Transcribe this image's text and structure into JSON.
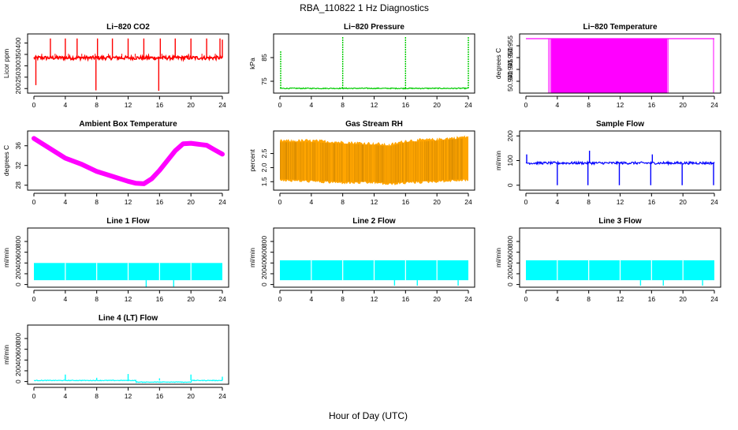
{
  "figure": {
    "title": "RBA_110822  1 Hz Diagnostics",
    "xlabel": "Hour of Day (UTC)"
  },
  "chart_data": [
    {
      "id": "co2",
      "type": "line",
      "title": "Li−820 CO2",
      "ylabel": "Licor ppm",
      "color": "#ff0000",
      "xlim": [
        0,
        24
      ],
      "ylim": [
        180,
        440
      ],
      "yticks": [
        "200",
        "250",
        "300",
        "350",
        "400"
      ],
      "ytick_values": [
        200,
        250,
        300,
        350,
        400
      ],
      "baseline": 335,
      "noise": 8,
      "spikes": [
        {
          "x": 0.25,
          "y": 215
        },
        {
          "x": 2.1,
          "y": 420
        },
        {
          "x": 4.0,
          "y": 420
        },
        {
          "x": 5.5,
          "y": 420
        },
        {
          "x": 7.9,
          "y": 192
        },
        {
          "x": 8.1,
          "y": 420
        },
        {
          "x": 10.0,
          "y": 420
        },
        {
          "x": 12.0,
          "y": 420
        },
        {
          "x": 14.0,
          "y": 420
        },
        {
          "x": 15.9,
          "y": 190
        },
        {
          "x": 16.1,
          "y": 420
        },
        {
          "x": 18.0,
          "y": 420
        },
        {
          "x": 20.0,
          "y": 420
        },
        {
          "x": 22.0,
          "y": 420
        },
        {
          "x": 23.7,
          "y": 420
        },
        {
          "x": 24.0,
          "y": 415
        }
      ]
    },
    {
      "id": "pressure",
      "type": "line",
      "title": "Li−820 Pressure",
      "ylabel": "kPa",
      "color": "#00cc00",
      "xlim": [
        0,
        24
      ],
      "ylim": [
        70,
        95
      ],
      "yticks": [
        "75",
        "85"
      ],
      "ytick_values": [
        75,
        85
      ],
      "baseline": 72,
      "noise": 0.2,
      "spikes": [
        {
          "x": 0.1,
          "y": 88
        },
        {
          "x": 8.0,
          "y": 94
        },
        {
          "x": 16.0,
          "y": 94
        },
        {
          "x": 24.0,
          "y": 94
        }
      ]
    },
    {
      "id": "li820_temp",
      "type": "area",
      "title": "Li−820 Temperature",
      "ylabel": "degrees C",
      "color": "#ff00ff",
      "xlim": [
        0,
        24
      ],
      "ylim": [
        50.935,
        50.96
      ],
      "yticks": [
        "50.940",
        "50.945",
        "50.950",
        "50.955"
      ],
      "ytick_values": [
        50.94,
        50.945,
        50.95,
        50.955
      ],
      "upper": 50.958,
      "lower": 50.935,
      "bands": [
        [
          3.2,
          18.0
        ]
      ],
      "verticals": [
        2.9,
        3.1,
        18.1,
        23.9
      ]
    },
    {
      "id": "ambient_temp",
      "type": "line",
      "title": "Ambient Box Temperature",
      "ylabel": "degrees C",
      "color": "#ff00ff",
      "xlim": [
        0,
        24
      ],
      "ylim": [
        27,
        39
      ],
      "yticks": [
        "28",
        "32",
        "36"
      ],
      "ytick_values": [
        28,
        32,
        36
      ],
      "x": [
        0,
        2,
        4,
        6,
        8,
        10,
        12,
        13,
        14,
        15,
        16,
        17,
        18,
        19,
        20,
        21,
        22,
        23,
        24
      ],
      "y": [
        37.5,
        35.5,
        33.5,
        32.3,
        30.8,
        29.8,
        28.8,
        28.4,
        28.3,
        29.3,
        31.0,
        33.0,
        35.0,
        36.4,
        36.5,
        36.3,
        36.1,
        35.2,
        34.3
      ]
    },
    {
      "id": "rh",
      "type": "line",
      "title": "Gas Stream RH",
      "ylabel": "percent",
      "color": "#ffa500",
      "xlim": [
        0,
        24
      ],
      "ylim": [
        1.2,
        3.3
      ],
      "yticks": [
        "1.5",
        "2.0",
        "2.5"
      ],
      "ytick_values": [
        1.5,
        2.0,
        2.5
      ],
      "x": [
        0,
        4,
        8,
        12,
        14,
        16,
        20,
        24
      ],
      "upper": [
        2.9,
        2.9,
        2.85,
        2.8,
        2.75,
        2.9,
        2.95,
        3.05
      ],
      "lower": [
        1.6,
        1.55,
        1.5,
        1.5,
        1.45,
        1.5,
        1.55,
        1.6
      ]
    },
    {
      "id": "sample_flow",
      "type": "line",
      "title": "Sample Flow",
      "ylabel": "ml/min",
      "color": "#0000ff",
      "xlim": [
        0,
        24
      ],
      "ylim": [
        -20,
        220
      ],
      "yticks": [
        "0",
        "100",
        "200"
      ],
      "ytick_values": [
        0,
        100,
        200
      ],
      "baseline": 90,
      "noise": 5,
      "spikes": [
        {
          "x": 0.1,
          "y": 125
        },
        {
          "x": 4.0,
          "y": 0
        },
        {
          "x": 7.9,
          "y": 0
        },
        {
          "x": 8.1,
          "y": 140
        },
        {
          "x": 11.9,
          "y": 0
        },
        {
          "x": 15.9,
          "y": 0
        },
        {
          "x": 16.1,
          "y": 125
        },
        {
          "x": 19.9,
          "y": 0
        },
        {
          "x": 23.9,
          "y": 0
        }
      ]
    },
    {
      "id": "line1",
      "type": "area",
      "title": "Line 1 Flow",
      "ylabel": "ml/min",
      "color": "#00ffff",
      "xlim": [
        0,
        24
      ],
      "ylim": [
        -50,
        1050
      ],
      "yticks": [
        "0",
        "200",
        "400",
        "600",
        "800"
      ],
      "ytick_values": [
        0,
        200,
        400,
        600,
        800
      ],
      "upper": 400,
      "lower": 80,
      "gaps": [
        4.0,
        8.0,
        12.0,
        16.0,
        20.0
      ],
      "dips": [
        {
          "x": 14.3,
          "y": -60
        },
        {
          "x": 17.8,
          "y": -40
        }
      ]
    },
    {
      "id": "line2",
      "type": "area",
      "title": "Line 2 Flow",
      "ylabel": "ml/min",
      "color": "#00ffff",
      "xlim": [
        0,
        24
      ],
      "ylim": [
        -50,
        1050
      ],
      "yticks": [
        "0",
        "200",
        "400",
        "600",
        "800"
      ],
      "ytick_values": [
        0,
        200,
        400,
        600,
        800
      ],
      "upper": 450,
      "lower": 80,
      "gaps": [
        4.0,
        8.0,
        12.0,
        16.0,
        20.0
      ],
      "dips": [
        {
          "x": 14.6,
          "y": -20
        },
        {
          "x": 17.5,
          "y": -20
        },
        {
          "x": 22.7,
          "y": -20
        }
      ]
    },
    {
      "id": "line3",
      "type": "area",
      "title": "Line 3 Flow",
      "ylabel": "ml/min",
      "color": "#00ffff",
      "xlim": [
        0,
        24
      ],
      "ylim": [
        -50,
        1050
      ],
      "yticks": [
        "0",
        "200",
        "400",
        "600",
        "800"
      ],
      "ytick_values": [
        0,
        200,
        400,
        600,
        800
      ],
      "upper": 450,
      "lower": 80,
      "gaps": [
        4.0,
        8.0,
        12.0,
        16.0,
        20.0
      ],
      "dips": [
        {
          "x": 14.6,
          "y": -20
        },
        {
          "x": 17.5,
          "y": -20
        },
        {
          "x": 22.5,
          "y": -20
        }
      ]
    },
    {
      "id": "line4",
      "type": "line",
      "title": "Line 4 (LT) Flow",
      "ylabel": "ml/min",
      "color": "#00ffff",
      "xlim": [
        0,
        24
      ],
      "ylim": [
        -50,
        1050
      ],
      "yticks": [
        "0",
        "200",
        "400",
        "600",
        "800"
      ],
      "ytick_values": [
        0,
        200,
        400,
        600,
        800
      ],
      "baseline": 20,
      "noise": 6,
      "spikes": [
        {
          "x": 4.0,
          "y": 130
        },
        {
          "x": 8.0,
          "y": 70
        },
        {
          "x": 12.0,
          "y": 140
        },
        {
          "x": 16.0,
          "y": 60
        },
        {
          "x": 20.0,
          "y": 130
        },
        {
          "x": 24.0,
          "y": 90
        }
      ],
      "low_segment": {
        "x0": 13.0,
        "x1": 20.0,
        "y": -10
      }
    }
  ],
  "xticks": [
    "0",
    "4",
    "8",
    "12",
    "16",
    "20",
    "24"
  ],
  "xtick_values": [
    0,
    4,
    8,
    12,
    16,
    20,
    24
  ]
}
